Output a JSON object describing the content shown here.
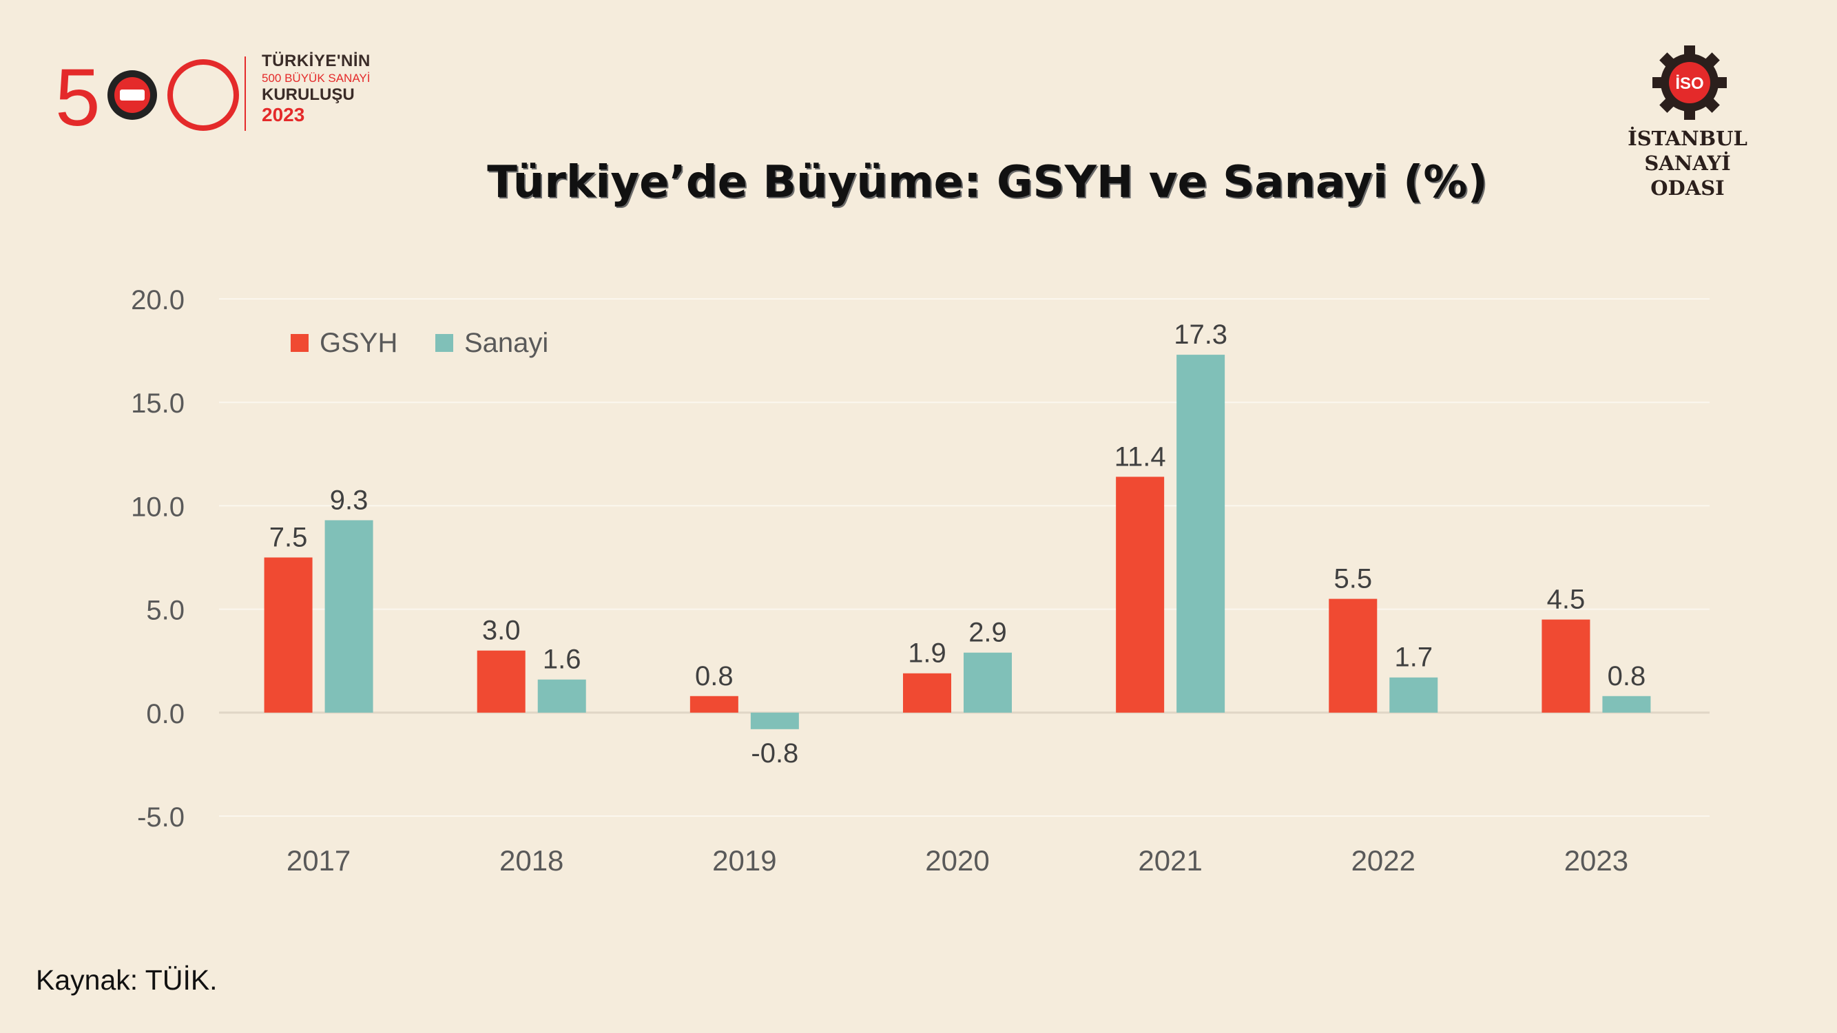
{
  "header": {
    "logo_500_line1": "TÜRKİYE'NİN",
    "logo_500_line2": "500 BÜYÜK SANAYİ",
    "logo_500_line3": "KURULUŞU",
    "logo_500_year": "2023",
    "logo_500_digits": "500",
    "iso_badge_text": "İSO",
    "iso_name_line1": "İSTANBUL",
    "iso_name_line2": "SANAYİ ODASI"
  },
  "footer": {
    "source": "Kaynak: TÜİK."
  },
  "colors": {
    "background": "#f5ecdc",
    "gsyh": "#f04a32",
    "sanayi": "#80c0b8",
    "brand_red": "#e42a2a"
  },
  "chart_data": {
    "type": "bar",
    "title": "Türkiye’de Büyüme: GSYH ve Sanayi (%)",
    "categories": [
      "2017",
      "2018",
      "2019",
      "2020",
      "2021",
      "2022",
      "2023"
    ],
    "series": [
      {
        "name": "GSYH",
        "color": "#f04a32",
        "values": [
          7.5,
          3.0,
          0.8,
          1.9,
          11.4,
          5.5,
          4.5
        ],
        "labels": [
          "7.5",
          "3.0",
          "0.8",
          "1.9",
          "11.4",
          "5.5",
          "4.5"
        ]
      },
      {
        "name": "Sanayi",
        "color": "#80c0b8",
        "values": [
          9.3,
          1.6,
          -0.8,
          2.9,
          17.3,
          1.7,
          0.8
        ],
        "labels": [
          "9.3",
          "1.6",
          "-0.8",
          "2.9",
          "17.3",
          "1.7",
          "0.8"
        ]
      }
    ],
    "yticks": [
      "20.0",
      "15.0",
      "10.0",
      "5.0",
      "0.0",
      "-5.0"
    ],
    "ylim": [
      -5,
      20
    ],
    "grid": true,
    "legend_position": "top-left"
  }
}
